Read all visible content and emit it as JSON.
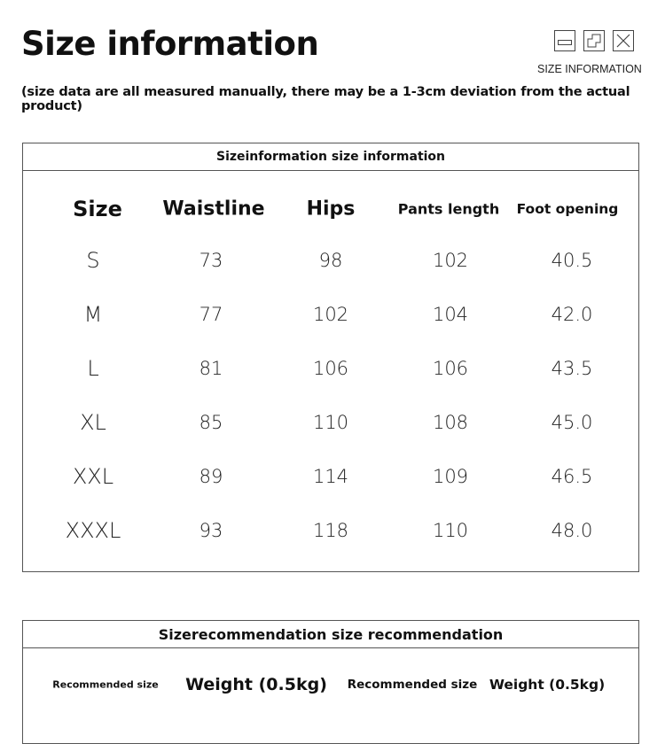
{
  "header": {
    "title": "Size information",
    "subtitle": "(size data are all measured manually, there may be a 1-3cm deviation from the actual product)",
    "window_label": "SIZE INFORMATION",
    "window_icons": [
      "minimize-icon",
      "restore-icon",
      "close-icon"
    ]
  },
  "size_table": {
    "title": "Sizeinformation size information",
    "columns": [
      "Size",
      "Waistline",
      "Hips",
      "Pants length",
      "Foot opening"
    ],
    "rows": [
      [
        "S",
        "73",
        "98",
        "102",
        "40.5"
      ],
      [
        "M",
        "77",
        "102",
        "104",
        "42.0"
      ],
      [
        "L",
        "81",
        "106",
        "106",
        "43.5"
      ],
      [
        "XL",
        "85",
        "110",
        "108",
        "45.0"
      ],
      [
        "XXL",
        "89",
        "114",
        "109",
        "46.5"
      ],
      [
        "XXXL",
        "93",
        "118",
        "110",
        "48.0"
      ]
    ]
  },
  "recommendation_table": {
    "title": "Sizerecommendation size recommendation",
    "columns": [
      "Recommended size",
      "Weight (0.5kg)",
      "Recommended size",
      "Weight (0.5kg)"
    ]
  }
}
